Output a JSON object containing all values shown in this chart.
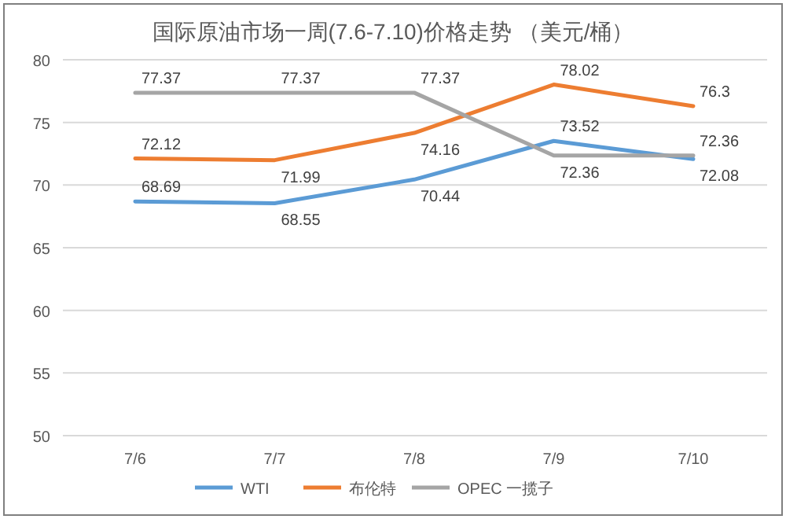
{
  "chart_data": {
    "type": "line",
    "title": "国际原油市场一周(7.6-7.10)价格走势 （美元/桶）",
    "categories": [
      "7/6",
      "7/7",
      "7/8",
      "7/9",
      "7/10"
    ],
    "series": [
      {
        "name": "WTI",
        "color": "#5b9bd5",
        "values": [
          68.69,
          68.55,
          70.44,
          73.52,
          72.08
        ]
      },
      {
        "name": "布伦特",
        "color": "#ed7d31",
        "values": [
          72.12,
          71.99,
          74.16,
          78.02,
          76.3
        ]
      },
      {
        "name": "OPEC 一揽子",
        "color": "#a5a5a5",
        "values": [
          77.37,
          77.37,
          77.37,
          72.36,
          72.36
        ]
      }
    ],
    "ylim": [
      50,
      80
    ],
    "yticks": [
      50,
      55,
      60,
      65,
      70,
      75,
      80
    ],
    "grid": "y",
    "legend": "bottom",
    "data_labels": true,
    "marker": "none",
    "line_style": "solid"
  }
}
